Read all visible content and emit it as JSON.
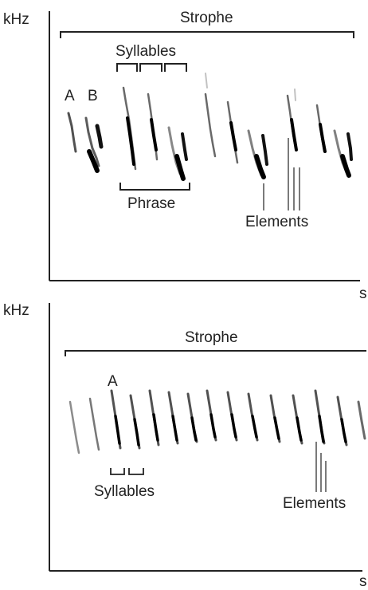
{
  "top_panel": {
    "y_axis_label": "kHz",
    "x_axis_label": "s",
    "strophe_label": "Strophe",
    "syllables_label": "Syllables",
    "phrase_label": "Phrase",
    "elements_label": "Elements",
    "syllable_letter_a": "A",
    "syllable_letter_b": "B"
  },
  "bottom_panel": {
    "y_axis_label": "kHz",
    "x_axis_label": "s",
    "strophe_label": "Strophe",
    "syllables_label": "Syllables",
    "elements_label": "Elements",
    "syllable_letter_a": "A"
  },
  "colors": {
    "axis": "#222222",
    "spectrogram_ink": "#1a1a1a",
    "background": "#ffffff"
  }
}
